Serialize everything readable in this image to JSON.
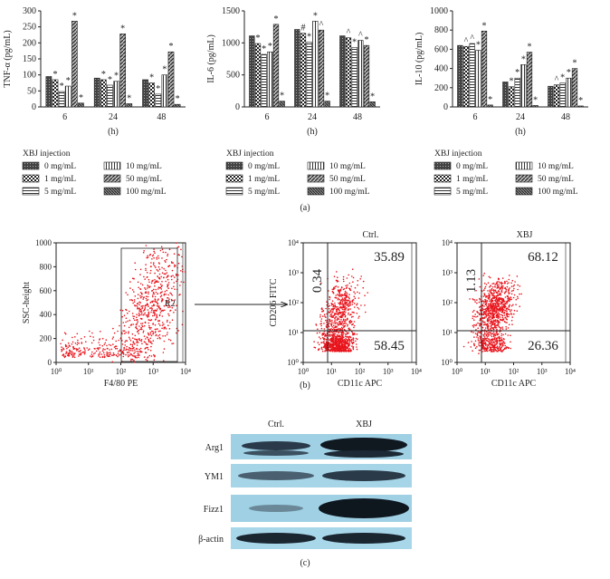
{
  "chart_data": [
    {
      "type": "bar",
      "ylabel": "TNF-α (pg/mL)",
      "xlabel": "(h)",
      "categories": [
        "6",
        "24",
        "48"
      ],
      "ylim": [
        0,
        300
      ],
      "yticks": [
        0,
        50,
        100,
        150,
        200,
        250,
        300
      ],
      "legend_title": "XBJ injection",
      "series": [
        {
          "name": "0 mg/mL",
          "pattern": "dark",
          "values": [
            95,
            90,
            85
          ]
        },
        {
          "name": "1 mg/mL",
          "pattern": "check",
          "values": [
            85,
            85,
            75
          ],
          "markers": [
            "*",
            "*",
            "*"
          ]
        },
        {
          "name": "5 mg/mL",
          "pattern": "hlines",
          "values": [
            48,
            68,
            40
          ],
          "markers": [
            "*",
            "*",
            "*"
          ]
        },
        {
          "name": "10 mg/mL",
          "pattern": "vlines",
          "values": [
            65,
            80,
            100
          ],
          "markers": [
            "*",
            "*",
            "*"
          ]
        },
        {
          "name": "50 mg/mL",
          "pattern": "diag",
          "values": [
            268,
            228,
            172
          ],
          "markers": [
            "*",
            "*",
            "*"
          ]
        },
        {
          "name": "100 mg/mL",
          "pattern": "diag2",
          "values": [
            12,
            10,
            8
          ],
          "markers": [
            "*",
            "*",
            "*"
          ]
        }
      ]
    },
    {
      "type": "bar",
      "ylabel": "IL-6 (pg/mL)",
      "xlabel": "(h)",
      "categories": [
        "6",
        "24",
        "48"
      ],
      "ylim": [
        0,
        1500
      ],
      "yticks": [
        0,
        500,
        1000,
        1500
      ],
      "legend_title": "XBJ injection",
      "series": [
        {
          "name": "0 mg/mL",
          "pattern": "dark",
          "values": [
            1110,
            1210,
            1110
          ]
        },
        {
          "name": "1 mg/mL",
          "pattern": "check",
          "values": [
            990,
            1150,
            1080
          ],
          "markers": [
            "*",
            "#",
            "^"
          ]
        },
        {
          "name": "5 mg/mL",
          "pattern": "hlines",
          "values": [
            820,
            1010,
            930
          ],
          "markers": [
            "*",
            "*",
            "*"
          ]
        },
        {
          "name": "10 mg/mL",
          "pattern": "vlines",
          "values": [
            860,
            1340,
            1040
          ],
          "markers": [
            "*",
            "*",
            "^"
          ]
        },
        {
          "name": "50 mg/mL",
          "pattern": "diag",
          "values": [
            1290,
            1200,
            960
          ],
          "markers": [
            "*",
            "^",
            "*"
          ]
        },
        {
          "name": "100 mg/mL",
          "pattern": "diag2",
          "values": [
            90,
            90,
            80
          ],
          "markers": [
            "*",
            "*",
            "*"
          ]
        }
      ]
    },
    {
      "type": "bar",
      "ylabel": "IL-10 (pg/mL)",
      "xlabel": "(h)",
      "categories": [
        "6",
        "24",
        "48"
      ],
      "ylim": [
        0,
        1000
      ],
      "yticks": [
        0,
        200,
        400,
        600,
        800,
        1000
      ],
      "legend_title": "XBJ injection",
      "series": [
        {
          "name": "0 mg/mL",
          "pattern": "dark",
          "values": [
            640,
            260,
            215
          ]
        },
        {
          "name": "1 mg/mL",
          "pattern": "check",
          "values": [
            630,
            210,
            230
          ],
          "markers": [
            "^",
            "*",
            "^"
          ]
        },
        {
          "name": "5 mg/mL",
          "pattern": "hlines",
          "values": [
            660,
            300,
            250
          ],
          "markers": [
            "^",
            "*",
            "*"
          ]
        },
        {
          "name": "10 mg/mL",
          "pattern": "vlines",
          "values": [
            590,
            440,
            300
          ],
          "markers": [
            "*",
            "*",
            "*"
          ]
        },
        {
          "name": "50 mg/mL",
          "pattern": "diag",
          "values": [
            790,
            570,
            400
          ],
          "markers": [
            "*",
            "*",
            "*"
          ]
        },
        {
          "name": "100 mg/mL",
          "pattern": "diag2",
          "values": [
            20,
            15,
            10
          ],
          "markers": [
            "*",
            "*",
            "*"
          ]
        }
      ]
    }
  ],
  "flow": {
    "gate": {
      "xlabel": "F4/80 PE",
      "ylabel": "SSC-height",
      "gate_label": "R2",
      "ylim": [
        0,
        1000
      ],
      "yticks": [
        0,
        200,
        400,
        600,
        800,
        1000
      ],
      "xlim": [
        1,
        10000
      ],
      "xscale": "log",
      "xticks": [
        {
          "value": 1,
          "label": "10⁰"
        },
        {
          "value": 10,
          "label": "10¹"
        },
        {
          "value": 100,
          "label": "10²"
        },
        {
          "value": 1000,
          "label": "10³"
        },
        {
          "value": 10000,
          "label": "10⁴"
        }
      ]
    },
    "quadrants": [
      {
        "title": "Ctrl.",
        "xlabel": "CD11c APC",
        "ylabel": "CD206 FITC",
        "upper_left": 0.34,
        "upper_right": 35.89,
        "lower_right": 58.45
      },
      {
        "title": "XBJ",
        "xlabel": "CD11c APC",
        "upper_left": 1.13,
        "upper_right": 68.12,
        "lower_right": 26.36
      }
    ],
    "axes": {
      "xlim": [
        1,
        10000
      ],
      "ylim": [
        1,
        10000
      ],
      "scale": "log",
      "ticks": [
        {
          "value": 1,
          "label": "10⁰"
        },
        {
          "value": 10,
          "label": "10¹"
        },
        {
          "value": 100,
          "label": "10²"
        },
        {
          "value": 1000,
          "label": "10³"
        },
        {
          "value": 10000,
          "label": "10⁴"
        }
      ]
    }
  },
  "blot": {
    "columns": [
      "Ctrl.",
      "XBJ"
    ],
    "rows": [
      "Arg1",
      "YM1",
      "Fizz1",
      "β-actin"
    ]
  },
  "panel_labels": [
    "(a)",
    "(b)",
    "(c)"
  ]
}
